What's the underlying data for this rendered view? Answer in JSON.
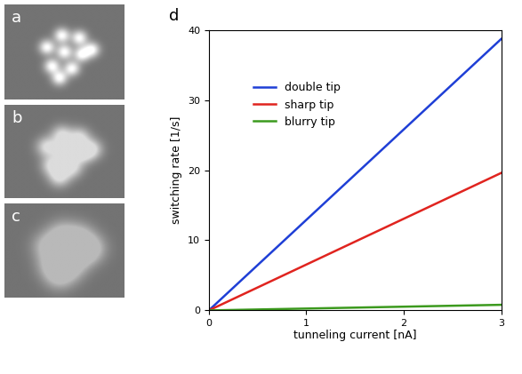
{
  "images": [
    {
      "label": "a"
    },
    {
      "label": "b"
    },
    {
      "label": "c"
    }
  ],
  "chart_data": {
    "type": "line",
    "panel_label": "d",
    "x_label": "tunneling current [nA]",
    "y_label": "switching rate [1/s]",
    "x": [
      0,
      3
    ],
    "series": [
      {
        "name": "double tip",
        "color": "#1f3fd6",
        "values": [
          0,
          38.7
        ]
      },
      {
        "name": "sharp tip",
        "color": "#e0241f",
        "values": [
          0,
          19.6
        ]
      },
      {
        "name": "blurry tip",
        "color": "#3c9a1e",
        "values": [
          0,
          0.8
        ]
      }
    ],
    "xlim": [
      0,
      3
    ],
    "xticks": [
      0,
      1,
      2,
      3
    ],
    "ylim": [
      0,
      40
    ],
    "yticks": [
      0,
      10,
      20,
      30,
      40
    ],
    "legend": "upper left",
    "grid": false
  }
}
